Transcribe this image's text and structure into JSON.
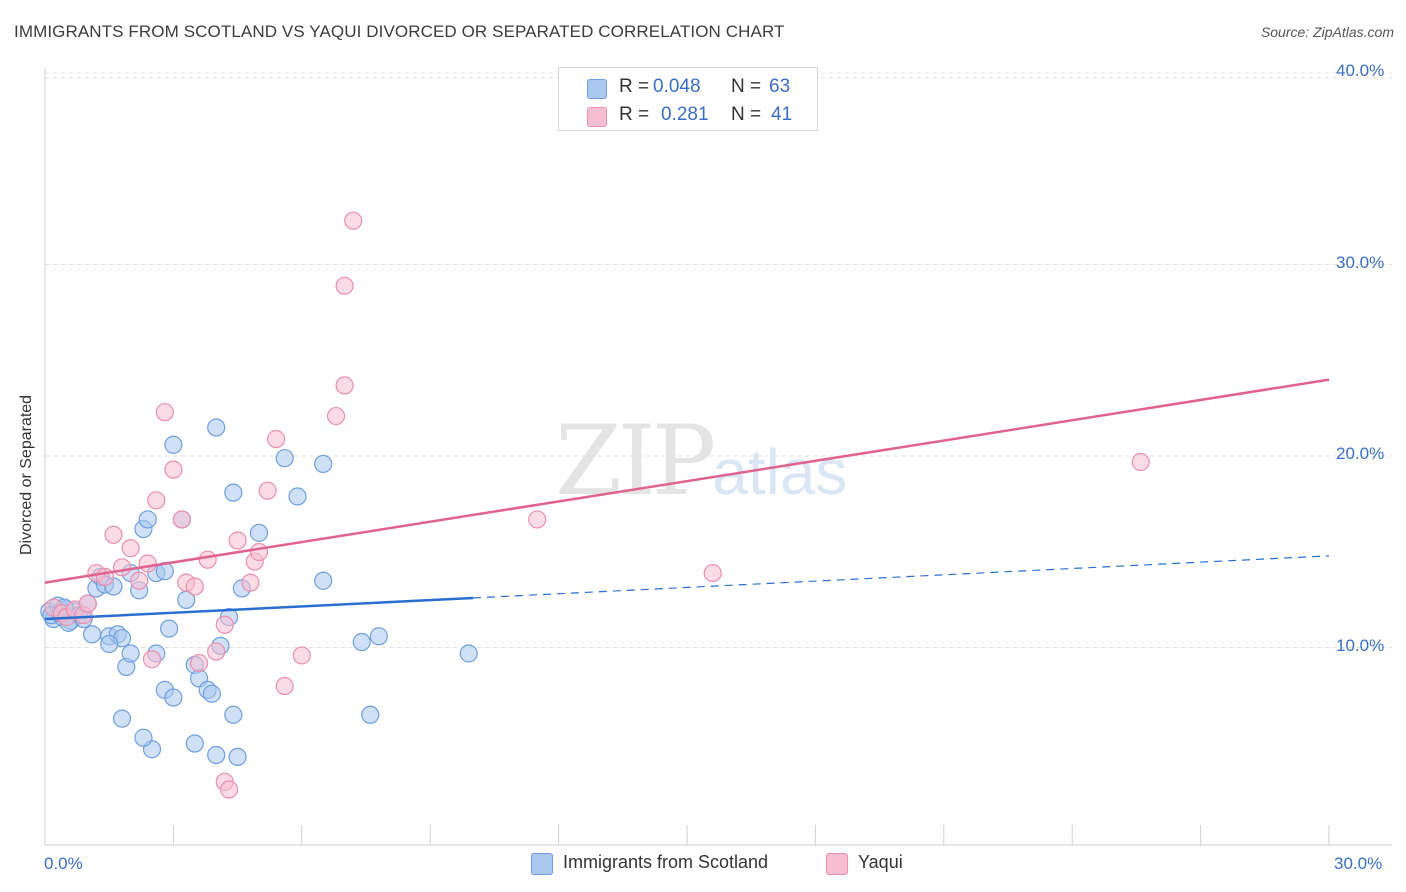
{
  "title": "IMMIGRANTS FROM SCOTLAND VS YAQUI DIVORCED OR SEPARATED CORRELATION CHART",
  "source": "Source: ZipAtlas.com",
  "watermark": {
    "zip": "ZIP",
    "atlas": "atlas"
  },
  "colors": {
    "blue_fill": "#aac8f0",
    "blue_stroke": "#6f9fe0",
    "blue_line": "#2a6fcf",
    "pink_fill": "#f7bdd0",
    "pink_stroke": "#ea8fae",
    "pink_line": "#e0628f",
    "accent_text": "#3a6ec6"
  },
  "legend_top": {
    "rows": [
      {
        "r_label": "R =",
        "r_value": "0.048",
        "n_label": "N =",
        "n_value": "63"
      },
      {
        "r_label": "R =",
        "r_value": "0.281",
        "n_label": "N =",
        "n_value": "41"
      }
    ]
  },
  "legend_bottom": {
    "series1": "Immigrants from Scotland",
    "series2": "Yaqui"
  },
  "axes": {
    "ylabel": "Divorced or Separated",
    "x_min_label": "0.0%",
    "x_max_label": "30.0%",
    "y_ticks": [
      "10.0%",
      "20.0%",
      "30.0%",
      "40.0%"
    ]
  },
  "chart_data": {
    "type": "scatter",
    "title": "IMMIGRANTS FROM SCOTLAND VS YAQUI DIVORCED OR SEPARATED CORRELATION CHART",
    "xlabel": "",
    "ylabel": "Divorced or Separated",
    "xlim": [
      0,
      30
    ],
    "ylim": [
      0,
      42
    ],
    "y_gridlines": [
      10,
      20,
      30,
      40
    ],
    "series": [
      {
        "name": "Immigrants from Scotland",
        "r": 0.048,
        "n": 63,
        "trend": {
          "x0": 0,
          "y0": 11.8,
          "x1": 30,
          "y1": 15.1,
          "solid_until_x": 10
        },
        "points": [
          [
            0.1,
            12.2
          ],
          [
            0.2,
            11.8
          ],
          [
            0.3,
            12.5
          ],
          [
            0.15,
            12.0
          ],
          [
            0.4,
            11.9
          ],
          [
            0.5,
            12.3
          ],
          [
            0.6,
            11.7
          ],
          [
            0.35,
            12.1
          ],
          [
            0.7,
            12.2
          ],
          [
            0.55,
            11.6
          ],
          [
            0.8,
            12.0
          ],
          [
            0.45,
            12.4
          ],
          [
            0.9,
            11.8
          ],
          [
            1.0,
            12.6
          ],
          [
            1.1,
            11.0
          ],
          [
            1.2,
            13.4
          ],
          [
            1.3,
            14.0
          ],
          [
            1.4,
            13.6
          ],
          [
            1.5,
            10.9
          ],
          [
            1.6,
            13.5
          ],
          [
            1.7,
            11.0
          ],
          [
            1.8,
            10.8
          ],
          [
            1.9,
            9.3
          ],
          [
            2.0,
            14.2
          ],
          [
            2.2,
            13.3
          ],
          [
            2.3,
            16.5
          ],
          [
            2.4,
            17.0
          ],
          [
            2.6,
            14.2
          ],
          [
            2.8,
            14.3
          ],
          [
            2.9,
            11.3
          ],
          [
            3.0,
            20.9
          ],
          [
            3.2,
            17.0
          ],
          [
            3.3,
            12.8
          ],
          [
            3.5,
            9.4
          ],
          [
            3.6,
            8.7
          ],
          [
            3.8,
            8.1
          ],
          [
            3.9,
            7.9
          ],
          [
            4.0,
            21.8
          ],
          [
            4.1,
            10.4
          ],
          [
            4.3,
            11.9
          ],
          [
            4.4,
            18.4
          ],
          [
            4.6,
            13.4
          ],
          [
            4.0,
            4.7
          ],
          [
            4.5,
            4.6
          ],
          [
            3.5,
            5.3
          ],
          [
            2.5,
            5.0
          ],
          [
            2.3,
            5.6
          ],
          [
            1.8,
            6.6
          ],
          [
            4.4,
            6.8
          ],
          [
            5.0,
            16.3
          ],
          [
            5.6,
            20.2
          ],
          [
            5.9,
            18.2
          ],
          [
            6.5,
            19.9
          ],
          [
            6.5,
            13.8
          ],
          [
            7.4,
            10.6
          ],
          [
            7.6,
            6.8
          ],
          [
            7.8,
            10.9
          ],
          [
            9.9,
            10.0
          ],
          [
            2.6,
            10.0
          ],
          [
            2.8,
            8.1
          ],
          [
            3.0,
            7.7
          ],
          [
            2.0,
            10.0
          ],
          [
            1.5,
            10.5
          ]
        ]
      },
      {
        "name": "Yaqui",
        "r": 0.281,
        "n": 41,
        "trend": {
          "x0": 0,
          "y0": 13.7,
          "x1": 30,
          "y1": 24.3
        },
        "points": [
          [
            0.2,
            12.4
          ],
          [
            0.4,
            12.1
          ],
          [
            0.5,
            11.9
          ],
          [
            0.7,
            12.3
          ],
          [
            0.9,
            12.0
          ],
          [
            1.0,
            12.6
          ],
          [
            1.2,
            14.2
          ],
          [
            1.4,
            14.0
          ],
          [
            1.6,
            16.2
          ],
          [
            1.8,
            14.5
          ],
          [
            2.0,
            15.5
          ],
          [
            2.2,
            13.8
          ],
          [
            2.4,
            14.7
          ],
          [
            2.5,
            9.7
          ],
          [
            2.6,
            18.0
          ],
          [
            2.8,
            22.6
          ],
          [
            3.0,
            19.6
          ],
          [
            3.2,
            17.0
          ],
          [
            3.3,
            13.7
          ],
          [
            3.5,
            13.5
          ],
          [
            3.6,
            9.5
          ],
          [
            3.8,
            14.9
          ],
          [
            4.0,
            10.1
          ],
          [
            4.2,
            11.5
          ],
          [
            4.5,
            15.9
          ],
          [
            4.8,
            13.7
          ],
          [
            4.9,
            14.8
          ],
          [
            5.0,
            15.3
          ],
          [
            5.2,
            18.5
          ],
          [
            5.4,
            21.2
          ],
          [
            5.6,
            8.3
          ],
          [
            6.0,
            9.9
          ],
          [
            6.8,
            22.4
          ],
          [
            7.0,
            24.0
          ],
          [
            7.2,
            32.6
          ],
          [
            7.0,
            29.2
          ],
          [
            4.2,
            3.3
          ],
          [
            4.3,
            2.9
          ],
          [
            11.5,
            17.0
          ],
          [
            15.6,
            14.2
          ],
          [
            25.6,
            20.0
          ]
        ]
      }
    ]
  }
}
